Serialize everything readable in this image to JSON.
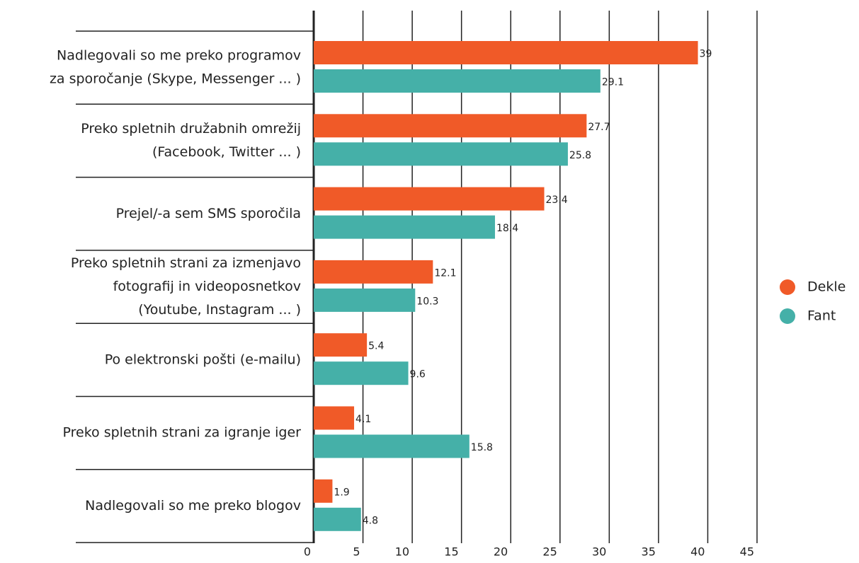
{
  "chart_data": {
    "type": "bar",
    "orientation": "horizontal",
    "categories": [
      [
        "Nadlegovali so me preko programov",
        "za sporočanje (Skype, Messenger ... )"
      ],
      [
        "Preko spletnih družabnih omrežij",
        "(Facebook, Twitter ... )"
      ],
      [
        "Prejel/-a sem SMS sporočila"
      ],
      [
        "Preko spletnih strani za izmenjavo",
        "fotografij in videoposnetkov",
        "(Youtube, Instagram ... )"
      ],
      [
        "Po elektronski pošti (e-mailu)"
      ],
      [
        "Preko spletnih strani za igranje iger"
      ],
      [
        "Nadlegovali so me preko blogov"
      ]
    ],
    "series": [
      {
        "name": "Dekle",
        "color": "#f05a28",
        "values": [
          39,
          27.7,
          23.4,
          12.1,
          5.4,
          4.1,
          1.9
        ]
      },
      {
        "name": "Fant",
        "color": "#45b0a8",
        "values": [
          29.1,
          25.8,
          18.4,
          10.3,
          9.6,
          15.8,
          4.8
        ]
      }
    ],
    "xlim": [
      0,
      45
    ],
    "xticks": [
      0,
      5,
      10,
      15,
      20,
      25,
      30,
      35,
      40,
      45
    ],
    "grid": true,
    "legend": "right"
  }
}
